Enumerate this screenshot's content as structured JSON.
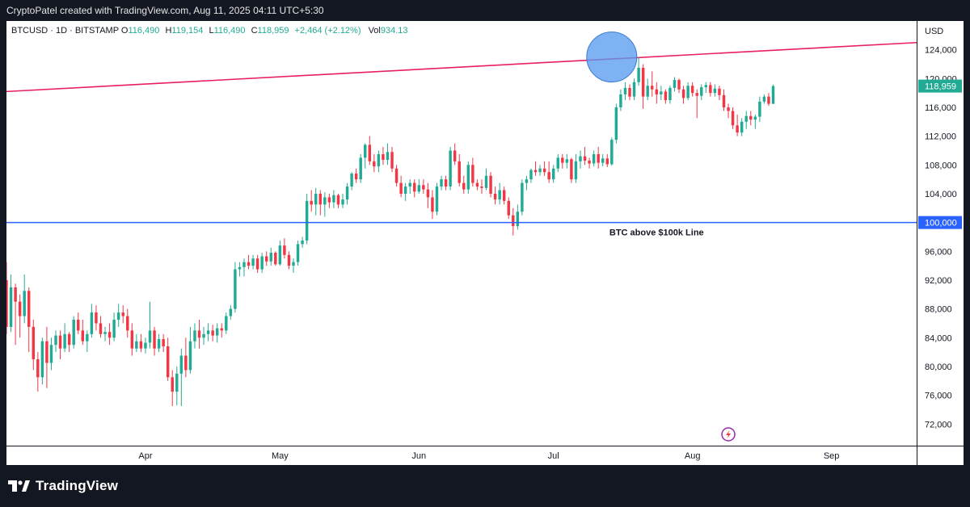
{
  "header": {
    "credit": "CryptoPatel created with TradingView.com, Aug 11, 2025 04:11 UTC+5:30"
  },
  "legend": {
    "symbol": "BTCUSD · 1D · BITSTAMP",
    "o_label": "O",
    "o_value": "116,490",
    "h_label": "H",
    "h_value": "119,154",
    "l_label": "L",
    "l_value": "116,490",
    "c_label": "C",
    "c_value": "118,959",
    "change": "+2,464 (+2.12%)",
    "vol_label": "Vol",
    "vol_value": "934.13"
  },
  "brand": {
    "name": "TradingView"
  },
  "colors": {
    "up": "#22ab94",
    "down": "#f23645",
    "hline": "#2962ff",
    "trendline": "#e91e63",
    "circle_fill": "#5b9cf0",
    "circle_stroke": "#3a7bd5"
  },
  "icons": [
    "tradingview-logo-icon",
    "lightning-icon"
  ],
  "chart_data": {
    "type": "candlestick",
    "symbol": "BTCUSD",
    "interval": "1D",
    "exchange": "BITSTAMP",
    "currency": "USD",
    "x_range": [
      "2025-03-01",
      "2025-09-20"
    ],
    "ylim": [
      69000,
      128000
    ],
    "y_ticks": [
      72000,
      76000,
      80000,
      84000,
      88000,
      92000,
      96000,
      100000,
      104000,
      108000,
      112000,
      116000,
      120000,
      124000
    ],
    "y_tick_labels": [
      "72,000",
      "76,000",
      "80,000",
      "84,000",
      "88,000",
      "92,000",
      "96,000",
      "100,000",
      "104,000",
      "108,000",
      "112,000",
      "116,000",
      "120,000",
      "124,000"
    ],
    "x_ticks": [
      {
        "date": "2025-04-01",
        "label": "Apr"
      },
      {
        "date": "2025-05-01",
        "label": "May"
      },
      {
        "date": "2025-06-01",
        "label": "Jun"
      },
      {
        "date": "2025-07-01",
        "label": "Jul"
      },
      {
        "date": "2025-08-01",
        "label": "Aug"
      },
      {
        "date": "2025-09-01",
        "label": "Sep"
      }
    ],
    "y_axis_label": "USD",
    "last_price": {
      "value": 118959,
      "label": "118,959"
    },
    "horizontal_line": {
      "value": 100000,
      "label": "100,000",
      "annotation": "BTC above $100k Line"
    },
    "trendline": {
      "start": {
        "date": "2025-03-01",
        "price": 118200
      },
      "end": {
        "date": "2025-09-20",
        "price": 125000
      }
    },
    "highlight_circle": {
      "date": "2025-07-14",
      "price": 123000
    },
    "start_date": "2025-03-01",
    "ohlc": [
      {
        "o": 92000,
        "h": 94500,
        "l": 84500,
        "c": 85500
      },
      {
        "o": 85500,
        "h": 92800,
        "l": 84800,
        "c": 91000
      },
      {
        "o": 91000,
        "h": 91500,
        "l": 83000,
        "c": 89000
      },
      {
        "o": 89000,
        "h": 90000,
        "l": 84000,
        "c": 87000
      },
      {
        "o": 87000,
        "h": 92800,
        "l": 86000,
        "c": 90500
      },
      {
        "o": 90500,
        "h": 91000,
        "l": 82000,
        "c": 85500
      },
      {
        "o": 85500,
        "h": 86500,
        "l": 79500,
        "c": 81000
      },
      {
        "o": 81000,
        "h": 82000,
        "l": 76500,
        "c": 78500
      },
      {
        "o": 78500,
        "h": 84000,
        "l": 77500,
        "c": 83500
      },
      {
        "o": 83500,
        "h": 85500,
        "l": 77000,
        "c": 80500
      },
      {
        "o": 80500,
        "h": 84000,
        "l": 79500,
        "c": 83000
      },
      {
        "o": 83000,
        "h": 85000,
        "l": 82000,
        "c": 84300
      },
      {
        "o": 84300,
        "h": 85000,
        "l": 81000,
        "c": 82500
      },
      {
        "o": 82500,
        "h": 86000,
        "l": 82000,
        "c": 84500
      },
      {
        "o": 84500,
        "h": 84800,
        "l": 82000,
        "c": 83000
      },
      {
        "o": 83000,
        "h": 87000,
        "l": 82500,
        "c": 86500
      },
      {
        "o": 86500,
        "h": 87500,
        "l": 84500,
        "c": 85000
      },
      {
        "o": 85000,
        "h": 86500,
        "l": 83000,
        "c": 83500
      },
      {
        "o": 83500,
        "h": 85000,
        "l": 82000,
        "c": 84500
      },
      {
        "o": 84500,
        "h": 88700,
        "l": 84000,
        "c": 87500
      },
      {
        "o": 87500,
        "h": 88500,
        "l": 85000,
        "c": 86000
      },
      {
        "o": 86000,
        "h": 87000,
        "l": 84000,
        "c": 84500
      },
      {
        "o": 84500,
        "h": 85500,
        "l": 83500,
        "c": 84800
      },
      {
        "o": 84800,
        "h": 86000,
        "l": 83000,
        "c": 84000
      },
      {
        "o": 84000,
        "h": 87500,
        "l": 83500,
        "c": 86500
      },
      {
        "o": 86500,
        "h": 88700,
        "l": 85500,
        "c": 87500
      },
      {
        "o": 87500,
        "h": 88500,
        "l": 86000,
        "c": 87000
      },
      {
        "o": 87000,
        "h": 88000,
        "l": 84000,
        "c": 85000
      },
      {
        "o": 85000,
        "h": 86000,
        "l": 81500,
        "c": 82500
      },
      {
        "o": 82500,
        "h": 84500,
        "l": 82000,
        "c": 83500
      },
      {
        "o": 83500,
        "h": 84500,
        "l": 82000,
        "c": 82500
      },
      {
        "o": 82500,
        "h": 84000,
        "l": 81800,
        "c": 83300
      },
      {
        "o": 83300,
        "h": 89000,
        "l": 82500,
        "c": 85000
      },
      {
        "o": 85000,
        "h": 85500,
        "l": 81500,
        "c": 82500
      },
      {
        "o": 82500,
        "h": 84500,
        "l": 82000,
        "c": 83800
      },
      {
        "o": 83800,
        "h": 84500,
        "l": 82000,
        "c": 82800
      },
      {
        "o": 82800,
        "h": 84000,
        "l": 78000,
        "c": 78500
      },
      {
        "o": 78500,
        "h": 79500,
        "l": 74500,
        "c": 76500
      },
      {
        "o": 76500,
        "h": 80000,
        "l": 74600,
        "c": 79000
      },
      {
        "o": 79000,
        "h": 82500,
        "l": 74500,
        "c": 81500
      },
      {
        "o": 81500,
        "h": 84000,
        "l": 78500,
        "c": 79500
      },
      {
        "o": 79500,
        "h": 85500,
        "l": 79000,
        "c": 83500
      },
      {
        "o": 83500,
        "h": 86000,
        "l": 82500,
        "c": 85000
      },
      {
        "o": 85000,
        "h": 86500,
        "l": 82500,
        "c": 84000
      },
      {
        "o": 84000,
        "h": 85500,
        "l": 83000,
        "c": 84500
      },
      {
        "o": 84500,
        "h": 86000,
        "l": 83500,
        "c": 85000
      },
      {
        "o": 85000,
        "h": 85800,
        "l": 83500,
        "c": 84300
      },
      {
        "o": 84300,
        "h": 86000,
        "l": 83300,
        "c": 85300
      },
      {
        "o": 85300,
        "h": 86000,
        "l": 84000,
        "c": 85000
      },
      {
        "o": 85000,
        "h": 87500,
        "l": 84500,
        "c": 87000
      },
      {
        "o": 87000,
        "h": 88500,
        "l": 86500,
        "c": 88000
      },
      {
        "o": 88000,
        "h": 94500,
        "l": 87500,
        "c": 93500
      },
      {
        "o": 93500,
        "h": 94500,
        "l": 92500,
        "c": 93800
      },
      {
        "o": 93800,
        "h": 95000,
        "l": 92500,
        "c": 94500
      },
      {
        "o": 94500,
        "h": 95500,
        "l": 93500,
        "c": 94000
      },
      {
        "o": 94000,
        "h": 95500,
        "l": 93500,
        "c": 95000
      },
      {
        "o": 95000,
        "h": 95500,
        "l": 93000,
        "c": 93500
      },
      {
        "o": 93500,
        "h": 95800,
        "l": 93000,
        "c": 95300
      },
      {
        "o": 95300,
        "h": 96000,
        "l": 94000,
        "c": 94600
      },
      {
        "o": 94600,
        "h": 96500,
        "l": 94000,
        "c": 95800
      },
      {
        "o": 95800,
        "h": 96000,
        "l": 94000,
        "c": 94200
      },
      {
        "o": 94200,
        "h": 97500,
        "l": 94000,
        "c": 96800
      },
      {
        "o": 96800,
        "h": 97800,
        "l": 95000,
        "c": 95500
      },
      {
        "o": 95500,
        "h": 96000,
        "l": 93500,
        "c": 94000
      },
      {
        "o": 94000,
        "h": 95000,
        "l": 93000,
        "c": 94500
      },
      {
        "o": 94500,
        "h": 97500,
        "l": 94000,
        "c": 97000
      },
      {
        "o": 97000,
        "h": 98000,
        "l": 96500,
        "c": 97500
      },
      {
        "o": 97500,
        "h": 104000,
        "l": 97000,
        "c": 103000
      },
      {
        "o": 103000,
        "h": 104500,
        "l": 101500,
        "c": 102500
      },
      {
        "o": 102500,
        "h": 104800,
        "l": 101000,
        "c": 104000
      },
      {
        "o": 104000,
        "h": 104500,
        "l": 101000,
        "c": 102500
      },
      {
        "o": 102500,
        "h": 104200,
        "l": 100800,
        "c": 103500
      },
      {
        "o": 103500,
        "h": 104000,
        "l": 102000,
        "c": 102800
      },
      {
        "o": 102800,
        "h": 104500,
        "l": 102000,
        "c": 103800
      },
      {
        "o": 103800,
        "h": 104000,
        "l": 102000,
        "c": 102500
      },
      {
        "o": 102500,
        "h": 104000,
        "l": 102000,
        "c": 103200
      },
      {
        "o": 103200,
        "h": 105500,
        "l": 102500,
        "c": 105000
      },
      {
        "o": 105000,
        "h": 107000,
        "l": 104500,
        "c": 106800
      },
      {
        "o": 106800,
        "h": 107500,
        "l": 105500,
        "c": 106000
      },
      {
        "o": 106000,
        "h": 109500,
        "l": 105500,
        "c": 109000
      },
      {
        "o": 109000,
        "h": 111000,
        "l": 107500,
        "c": 110800
      },
      {
        "o": 110800,
        "h": 112000,
        "l": 108000,
        "c": 108500
      },
      {
        "o": 108500,
        "h": 109500,
        "l": 107000,
        "c": 107800
      },
      {
        "o": 107800,
        "h": 110000,
        "l": 107000,
        "c": 109500
      },
      {
        "o": 109500,
        "h": 110500,
        "l": 108000,
        "c": 108700
      },
      {
        "o": 108700,
        "h": 111000,
        "l": 108000,
        "c": 109800
      },
      {
        "o": 109800,
        "h": 110500,
        "l": 107000,
        "c": 107500
      },
      {
        "o": 107500,
        "h": 108000,
        "l": 105000,
        "c": 105500
      },
      {
        "o": 105500,
        "h": 106500,
        "l": 103500,
        "c": 104000
      },
      {
        "o": 104000,
        "h": 105500,
        "l": 103000,
        "c": 105000
      },
      {
        "o": 105000,
        "h": 106000,
        "l": 104000,
        "c": 105500
      },
      {
        "o": 105500,
        "h": 106000,
        "l": 103500,
        "c": 104300
      },
      {
        "o": 104300,
        "h": 106000,
        "l": 104000,
        "c": 105200
      },
      {
        "o": 105200,
        "h": 106000,
        "l": 104000,
        "c": 104600
      },
      {
        "o": 104600,
        "h": 105500,
        "l": 102000,
        "c": 103500
      },
      {
        "o": 103500,
        "h": 104500,
        "l": 100500,
        "c": 101500
      },
      {
        "o": 101500,
        "h": 105500,
        "l": 101000,
        "c": 105000
      },
      {
        "o": 105000,
        "h": 106500,
        "l": 104500,
        "c": 106000
      },
      {
        "o": 106000,
        "h": 106500,
        "l": 104500,
        "c": 105000
      },
      {
        "o": 105000,
        "h": 110500,
        "l": 104500,
        "c": 110000
      },
      {
        "o": 110000,
        "h": 111000,
        "l": 108000,
        "c": 108500
      },
      {
        "o": 108500,
        "h": 109500,
        "l": 105000,
        "c": 105500
      },
      {
        "o": 105500,
        "h": 106500,
        "l": 104000,
        "c": 104600
      },
      {
        "o": 104600,
        "h": 108500,
        "l": 104000,
        "c": 108000
      },
      {
        "o": 108000,
        "h": 109000,
        "l": 105000,
        "c": 105500
      },
      {
        "o": 105500,
        "h": 106000,
        "l": 104500,
        "c": 105000
      },
      {
        "o": 105000,
        "h": 106000,
        "l": 104000,
        "c": 104800
      },
      {
        "o": 104800,
        "h": 107500,
        "l": 104500,
        "c": 106500
      },
      {
        "o": 106500,
        "h": 107000,
        "l": 103500,
        "c": 104000
      },
      {
        "o": 104000,
        "h": 105000,
        "l": 102500,
        "c": 103200
      },
      {
        "o": 103200,
        "h": 105500,
        "l": 102500,
        "c": 104500
      },
      {
        "o": 104500,
        "h": 105000,
        "l": 102500,
        "c": 103000
      },
      {
        "o": 103000,
        "h": 103500,
        "l": 100500,
        "c": 101000
      },
      {
        "o": 101000,
        "h": 102000,
        "l": 98200,
        "c": 99500
      },
      {
        "o": 99500,
        "h": 102500,
        "l": 99000,
        "c": 101500
      },
      {
        "o": 101500,
        "h": 106000,
        "l": 101000,
        "c": 105500
      },
      {
        "o": 105500,
        "h": 106500,
        "l": 104500,
        "c": 106000
      },
      {
        "o": 106000,
        "h": 107500,
        "l": 105500,
        "c": 107300
      },
      {
        "o": 107300,
        "h": 108500,
        "l": 106500,
        "c": 107000
      },
      {
        "o": 107000,
        "h": 108000,
        "l": 106500,
        "c": 107500
      },
      {
        "o": 107500,
        "h": 108500,
        "l": 106500,
        "c": 107000
      },
      {
        "o": 107000,
        "h": 108500,
        "l": 105500,
        "c": 106000
      },
      {
        "o": 106000,
        "h": 108000,
        "l": 105500,
        "c": 107500
      },
      {
        "o": 107500,
        "h": 109500,
        "l": 107000,
        "c": 109000
      },
      {
        "o": 109000,
        "h": 109500,
        "l": 107500,
        "c": 108300
      },
      {
        "o": 108300,
        "h": 109500,
        "l": 107500,
        "c": 108800
      },
      {
        "o": 108800,
        "h": 109000,
        "l": 105500,
        "c": 106000
      },
      {
        "o": 106000,
        "h": 109500,
        "l": 105500,
        "c": 108500
      },
      {
        "o": 108500,
        "h": 110000,
        "l": 107500,
        "c": 109200
      },
      {
        "o": 109200,
        "h": 110500,
        "l": 108000,
        "c": 108600
      },
      {
        "o": 108600,
        "h": 109000,
        "l": 107500,
        "c": 108200
      },
      {
        "o": 108200,
        "h": 110000,
        "l": 107800,
        "c": 109500
      },
      {
        "o": 109500,
        "h": 110500,
        "l": 107500,
        "c": 108300
      },
      {
        "o": 108300,
        "h": 109500,
        "l": 107800,
        "c": 108900
      },
      {
        "o": 108900,
        "h": 109500,
        "l": 107700,
        "c": 108100
      },
      {
        "o": 108100,
        "h": 111800,
        "l": 107900,
        "c": 111500
      },
      {
        "o": 111500,
        "h": 116500,
        "l": 111000,
        "c": 116000
      },
      {
        "o": 116000,
        "h": 118500,
        "l": 115500,
        "c": 117800
      },
      {
        "o": 117800,
        "h": 119500,
        "l": 117000,
        "c": 118700
      },
      {
        "o": 118700,
        "h": 119200,
        "l": 117000,
        "c": 117500
      },
      {
        "o": 117500,
        "h": 120000,
        "l": 117000,
        "c": 119500
      },
      {
        "o": 119500,
        "h": 123000,
        "l": 119000,
        "c": 121500
      },
      {
        "o": 121500,
        "h": 122000,
        "l": 115800,
        "c": 117500
      },
      {
        "o": 117500,
        "h": 120000,
        "l": 117000,
        "c": 119000
      },
      {
        "o": 119000,
        "h": 121000,
        "l": 117500,
        "c": 118500
      },
      {
        "o": 118500,
        "h": 119500,
        "l": 116500,
        "c": 117800
      },
      {
        "o": 117800,
        "h": 119000,
        "l": 117000,
        "c": 118200
      },
      {
        "o": 118200,
        "h": 118500,
        "l": 116500,
        "c": 117000
      },
      {
        "o": 117000,
        "h": 119000,
        "l": 116500,
        "c": 118700
      },
      {
        "o": 118700,
        "h": 120200,
        "l": 118200,
        "c": 119800
      },
      {
        "o": 119800,
        "h": 120000,
        "l": 118000,
        "c": 118500
      },
      {
        "o": 118500,
        "h": 119000,
        "l": 116500,
        "c": 117300
      },
      {
        "o": 117300,
        "h": 119500,
        "l": 117000,
        "c": 119000
      },
      {
        "o": 119000,
        "h": 119500,
        "l": 117500,
        "c": 118000
      },
      {
        "o": 118000,
        "h": 118500,
        "l": 114500,
        "c": 117600
      },
      {
        "o": 117600,
        "h": 119200,
        "l": 117000,
        "c": 118800
      },
      {
        "o": 118800,
        "h": 119500,
        "l": 118000,
        "c": 119100
      },
      {
        "o": 119100,
        "h": 119500,
        "l": 117500,
        "c": 118000
      },
      {
        "o": 118000,
        "h": 119200,
        "l": 117500,
        "c": 118600
      },
      {
        "o": 118600,
        "h": 119000,
        "l": 117000,
        "c": 117700
      },
      {
        "o": 117700,
        "h": 118500,
        "l": 115500,
        "c": 116000
      },
      {
        "o": 116000,
        "h": 116500,
        "l": 114500,
        "c": 115500
      },
      {
        "o": 115500,
        "h": 116000,
        "l": 113000,
        "c": 113500
      },
      {
        "o": 113500,
        "h": 115000,
        "l": 112000,
        "c": 112500
      },
      {
        "o": 112500,
        "h": 114500,
        "l": 112000,
        "c": 114000
      },
      {
        "o": 114000,
        "h": 115500,
        "l": 113000,
        "c": 114800
      },
      {
        "o": 114800,
        "h": 115500,
        "l": 113500,
        "c": 114300
      },
      {
        "o": 114300,
        "h": 115000,
        "l": 113000,
        "c": 114700
      },
      {
        "o": 114700,
        "h": 117500,
        "l": 114000,
        "c": 116800
      },
      {
        "o": 116800,
        "h": 117800,
        "l": 116500,
        "c": 117500
      },
      {
        "o": 117500,
        "h": 118000,
        "l": 116200,
        "c": 116490
      },
      {
        "o": 116490,
        "h": 119154,
        "l": 116490,
        "c": 118959
      }
    ]
  }
}
